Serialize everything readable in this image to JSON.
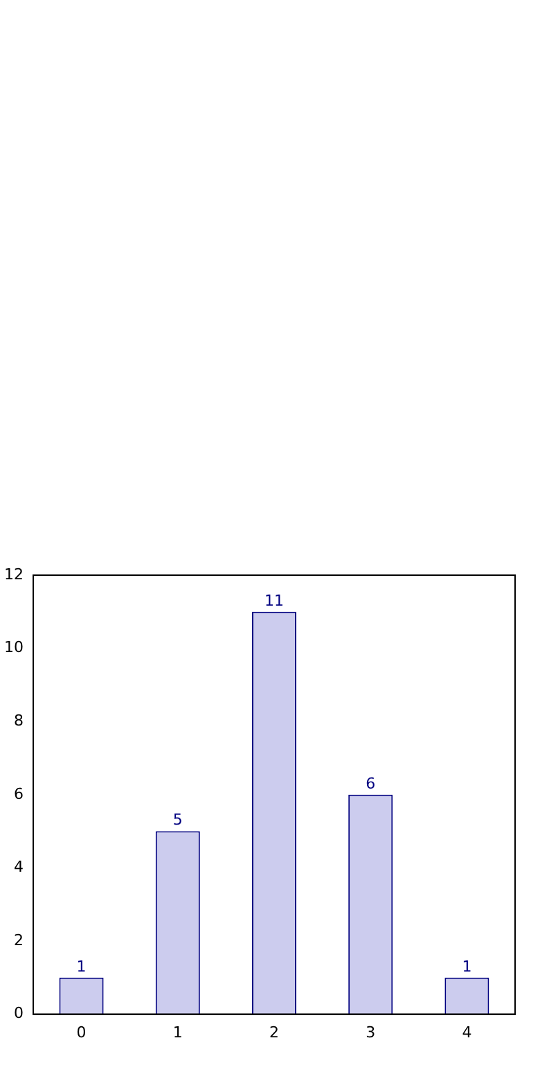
{
  "chart_data": {
    "type": "bar",
    "categories": [
      "0",
      "1",
      "2",
      "3",
      "4"
    ],
    "values": [
      1,
      5,
      11,
      6,
      1
    ],
    "color": "#ccccee",
    "ylim": [
      0,
      12
    ],
    "yticks": [
      0,
      2,
      4,
      6,
      8,
      10,
      12
    ],
    "grid": false,
    "legend": false,
    "data_labels": true
  }
}
